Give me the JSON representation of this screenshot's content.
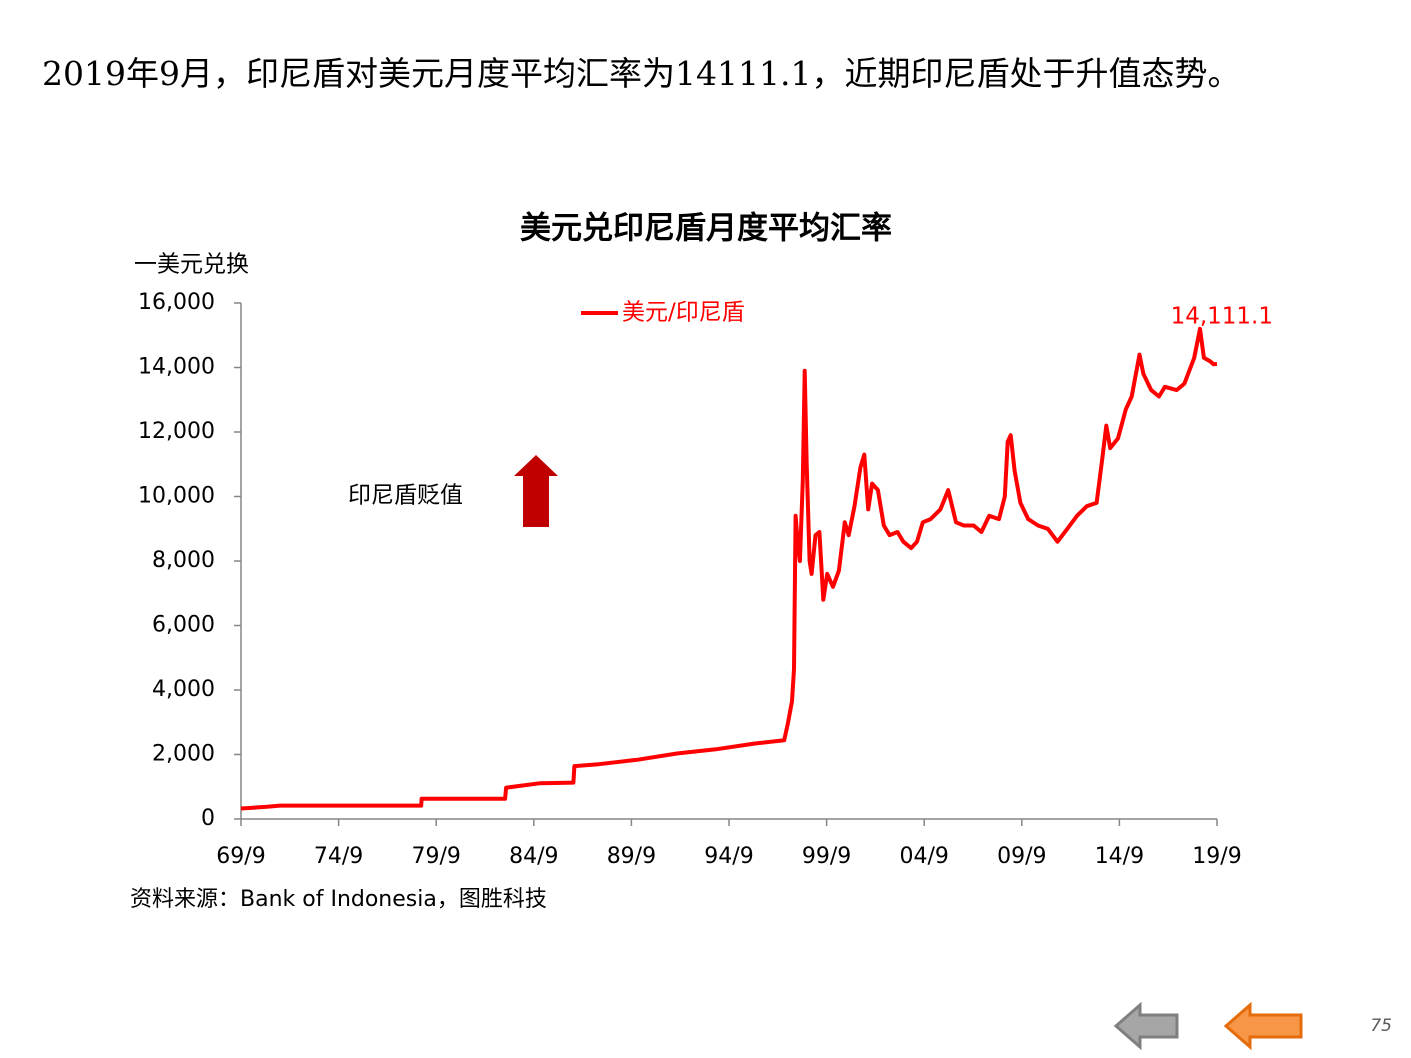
{
  "header": {
    "text": "2019年9月，印尼盾对美元月度平均汇率为14111.1，近期印尼盾处于升值态势。"
  },
  "chart_data": {
    "type": "line",
    "title": "美元兑印尼盾月度平均汇率",
    "y_label": "一美元兑换",
    "annotation": "印尼盾贬值",
    "last_value_label": "14,111.1",
    "source": "资料来源：Bank of Indonesia，图胜科技",
    "x": [
      1969.67,
      1971.0,
      1971.67,
      1978.9,
      1978.92,
      1983.2,
      1983.25,
      1985.0,
      1986.7,
      1986.75,
      1988.0,
      1990.0,
      1992.0,
      1994.0,
      1996.0,
      1997.5,
      1997.7,
      1997.9,
      1998.0,
      1998.08,
      1998.2,
      1998.3,
      1998.45,
      1998.55,
      1998.65,
      1998.8,
      1998.9,
      1999.1,
      1999.3,
      1999.5,
      1999.7,
      2000.0,
      2000.3,
      2000.6,
      2000.8,
      2001.1,
      2001.4,
      2001.6,
      2001.8,
      2002.0,
      2002.3,
      2002.6,
      2002.9,
      2003.3,
      2003.6,
      2004.0,
      2004.3,
      2004.6,
      2005.0,
      2005.5,
      2005.9,
      2006.3,
      2006.7,
      2007.2,
      2007.6,
      2008.0,
      2008.5,
      2008.8,
      2008.95,
      2009.1,
      2009.3,
      2009.6,
      2010.0,
      2010.5,
      2011.0,
      2011.5,
      2012.0,
      2012.5,
      2013.0,
      2013.5,
      2013.8,
      2014.0,
      2014.2,
      2014.6,
      2015.0,
      2015.3,
      2015.7,
      2015.9,
      2016.3,
      2016.7,
      2017.0,
      2017.6,
      2018.0,
      2018.5,
      2018.8,
      2019.0,
      2019.3,
      2019.5,
      2019.67
    ],
    "series": [
      {
        "name": "美元/印尼盾",
        "color": "#ff0000",
        "values": [
          326,
          378,
          415,
          415,
          625,
          625,
          970,
          1110,
          1130,
          1640,
          1700,
          1840,
          2030,
          2160,
          2340,
          2440,
          3000,
          3650,
          4650,
          9400,
          8500,
          8000,
          10500,
          13900,
          11000,
          8000,
          7600,
          8800,
          8900,
          6800,
          7600,
          7200,
          7700,
          9200,
          8800,
          9700,
          10900,
          11300,
          9600,
          10400,
          10200,
          9100,
          8800,
          8900,
          8600,
          8400,
          8600,
          9200,
          9300,
          9600,
          10200,
          9200,
          9100,
          9100,
          8900,
          9400,
          9300,
          10000,
          11700,
          11900,
          10800,
          9800,
          9300,
          9100,
          9000,
          8600,
          9000,
          9400,
          9700,
          9800,
          11200,
          12200,
          11500,
          11800,
          12700,
          13100,
          14400,
          13800,
          13300,
          13100,
          13400,
          13300,
          13500,
          14300,
          15200,
          14300,
          14200,
          14100,
          14111.1
        ]
      }
    ],
    "xlim": [
      1969.67,
      2019.67
    ],
    "xticks": [
      {
        "value": 1969.67,
        "label": "69/9"
      },
      {
        "value": 1974.67,
        "label": "74/9"
      },
      {
        "value": 1979.67,
        "label": "79/9"
      },
      {
        "value": 1984.67,
        "label": "84/9"
      },
      {
        "value": 1989.67,
        "label": "89/9"
      },
      {
        "value": 1994.67,
        "label": "94/9"
      },
      {
        "value": 1999.67,
        "label": "99/9"
      },
      {
        "value": 2004.67,
        "label": "04/9"
      },
      {
        "value": 2009.67,
        "label": "09/9"
      },
      {
        "value": 2014.67,
        "label": "14/9"
      },
      {
        "value": 2019.67,
        "label": "19/9"
      }
    ],
    "ylim": [
      0,
      16000
    ],
    "yticks": [
      0,
      {
        "value": 2000,
        "label": "2,000"
      },
      {
        "value": 4000,
        "label": "4,000"
      },
      {
        "value": 6000,
        "label": "6,000"
      },
      {
        "value": 8000,
        "label": "8,000"
      },
      {
        "value": 10000,
        "label": "10,000"
      },
      {
        "value": 12000,
        "label": "12,000"
      },
      {
        "value": 14000,
        "label": "14,000"
      },
      {
        "value": 16000,
        "label": "16,000"
      }
    ],
    "grid": false,
    "legend": "top"
  },
  "page_number": "75"
}
